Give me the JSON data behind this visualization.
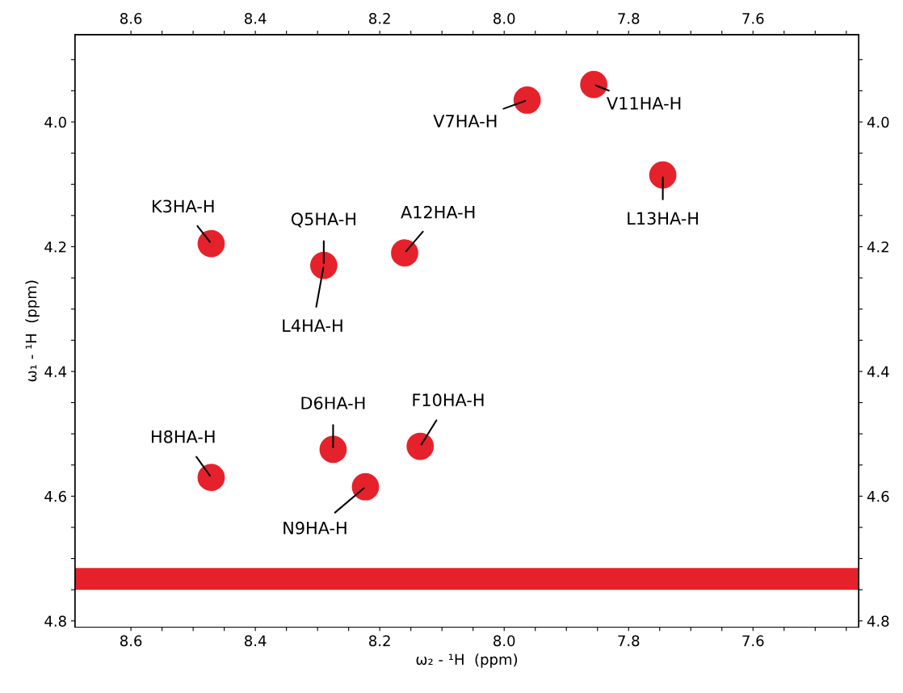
{
  "chart_data": {
    "type": "scatter",
    "xlabel": "ω₂ - ¹H  (ppm)",
    "ylabel": "ω₁ - ¹H  (ppm)",
    "x": [
      8.471,
      8.29,
      8.16,
      7.963,
      7.856,
      7.745,
      8.275,
      8.135,
      8.471,
      8.223
    ],
    "values": [
      4.195,
      4.23,
      4.21,
      3.965,
      3.94,
      4.085,
      4.525,
      4.52,
      4.57,
      4.585
    ],
    "color": "#e5222b",
    "marker": "circle",
    "annotations": [
      {
        "text": "K3HA-H",
        "x": 8.471,
        "y": 4.195
      },
      {
        "text": "Q5HA-H",
        "x": 8.29,
        "y": 4.23
      },
      {
        "text": "L4HA-H",
        "x": 8.29,
        "y": 4.23
      },
      {
        "text": "A12HA-H",
        "x": 8.16,
        "y": 4.21
      },
      {
        "text": "V7HA-H",
        "x": 7.963,
        "y": 3.965
      },
      {
        "text": "V11HA-H",
        "x": 7.856,
        "y": 3.94
      },
      {
        "text": "L13HA-H",
        "x": 7.745,
        "y": 4.085
      },
      {
        "text": "D6HA-H",
        "x": 8.275,
        "y": 4.525
      },
      {
        "text": "F10HA-H",
        "x": 8.135,
        "y": 4.52
      },
      {
        "text": "H8HA-H",
        "x": 8.471,
        "y": 4.57
      },
      {
        "text": "N9HA-H",
        "x": 8.223,
        "y": 4.585
      }
    ],
    "bands": [
      {
        "axis": "y",
        "from": 4.715,
        "to": 4.75,
        "color": "#e5222b"
      }
    ],
    "xlim": [
      8.69,
      7.43
    ],
    "xticks": [
      8.6,
      {
        "value": 8.55,
        "label": null
      },
      {
        "value": 8.5,
        "label": null
      },
      {
        "value": 8.45,
        "label": null
      },
      8.4,
      {
        "value": 8.35,
        "label": null
      },
      {
        "value": 8.3,
        "label": null
      },
      {
        "value": 8.25,
        "label": null
      },
      8.2,
      {
        "value": 8.15,
        "label": null
      },
      {
        "value": 8.1,
        "label": null
      },
      {
        "value": 8.05,
        "label": null
      },
      {
        "value": 8.0,
        "label": "8.0"
      },
      {
        "value": 7.95,
        "label": null
      },
      {
        "value": 7.9,
        "label": null
      },
      {
        "value": 7.85,
        "label": null
      },
      7.8,
      {
        "value": 7.75,
        "label": null
      },
      {
        "value": 7.7,
        "label": null
      },
      {
        "value": 7.65,
        "label": null
      },
      7.6,
      {
        "value": 7.55,
        "label": null
      },
      {
        "value": 7.5,
        "label": null
      },
      {
        "value": 7.45,
        "label": null
      }
    ],
    "x2lim": [
      8.69,
      7.43
    ],
    "x2ticks": [
      8.6,
      {
        "value": 8.55,
        "label": null
      },
      {
        "value": 8.5,
        "label": null
      },
      {
        "value": 8.45,
        "label": null
      },
      8.4,
      {
        "value": 8.35,
        "label": null
      },
      {
        "value": 8.3,
        "label": null
      },
      {
        "value": 8.25,
        "label": null
      },
      8.2,
      {
        "value": 8.15,
        "label": null
      },
      {
        "value": 8.1,
        "label": null
      },
      {
        "value": 8.05,
        "label": null
      },
      {
        "value": 8.0,
        "label": "8.0"
      },
      {
        "value": 7.95,
        "label": null
      },
      {
        "value": 7.9,
        "label": null
      },
      {
        "value": 7.85,
        "label": null
      },
      7.8,
      {
        "value": 7.75,
        "label": null
      },
      {
        "value": 7.7,
        "label": null
      },
      {
        "value": 7.65,
        "label": null
      },
      7.6,
      {
        "value": 7.55,
        "label": null
      },
      {
        "value": 7.5,
        "label": null
      },
      {
        "value": 7.45,
        "label": null
      }
    ],
    "ylim": [
      4.81,
      3.86
    ],
    "yticks": [
      {
        "value": 3.9,
        "label": null
      },
      {
        "value": 3.95,
        "label": null
      },
      {
        "value": 4.0,
        "label": "4.0"
      },
      {
        "value": 4.05,
        "label": null
      },
      {
        "value": 4.1,
        "label": null
      },
      {
        "value": 4.15,
        "label": null
      },
      4.2,
      {
        "value": 4.25,
        "label": null
      },
      {
        "value": 4.3,
        "label": null
      },
      {
        "value": 4.35,
        "label": null
      },
      4.4,
      {
        "value": 4.45,
        "label": null
      },
      {
        "value": 4.5,
        "label": null
      },
      {
        "value": 4.55,
        "label": null
      },
      4.6,
      {
        "value": 4.65,
        "label": null
      },
      {
        "value": 4.7,
        "label": null
      },
      {
        "value": 4.75,
        "label": null
      },
      4.8
    ],
    "y2lim": [
      4.81,
      3.86
    ],
    "y2ticks": [
      {
        "value": 3.9,
        "label": null
      },
      {
        "value": 3.95,
        "label": null
      },
      {
        "value": 4.0,
        "label": "4.0"
      },
      {
        "value": 4.05,
        "label": null
      },
      {
        "value": 4.1,
        "label": null
      },
      {
        "value": 4.15,
        "label": null
      },
      4.2,
      {
        "value": 4.25,
        "label": null
      },
      {
        "value": 4.3,
        "label": null
      },
      {
        "value": 4.35,
        "label": null
      },
      4.4,
      {
        "value": 4.45,
        "label": null
      },
      {
        "value": 4.5,
        "label": null
      },
      {
        "value": 4.55,
        "label": null
      },
      4.6,
      {
        "value": 4.65,
        "label": null
      },
      {
        "value": 4.7,
        "label": null
      },
      {
        "value": 4.75,
        "label": null
      },
      4.8
    ]
  }
}
